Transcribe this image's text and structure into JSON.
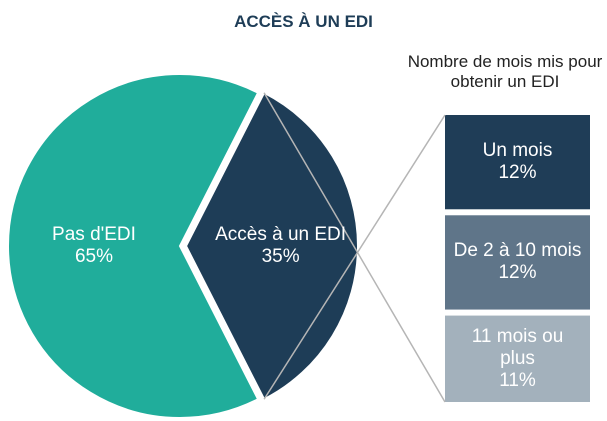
{
  "chart_data": {
    "type": "pie",
    "title": "ACCÈS À UN EDI",
    "categories": [
      "Pas d'EDI",
      "Accès à un EDI"
    ],
    "values": [
      65,
      35
    ],
    "value_labels": [
      "65%",
      "35%"
    ],
    "colors": [
      "#20ad9b",
      "#1e3d57"
    ],
    "breakdown": {
      "title": "Nombre de mois mis pour obtenir un EDI",
      "categories": [
        "Un mois",
        "De 2 à 10 mois",
        "11 mois ou plus"
      ],
      "values": [
        12,
        12,
        11
      ],
      "value_labels": [
        "12%",
        "12%",
        "11%"
      ],
      "colors": [
        "#1f3d57",
        "#5f7589",
        "#a3b1bc"
      ]
    }
  }
}
